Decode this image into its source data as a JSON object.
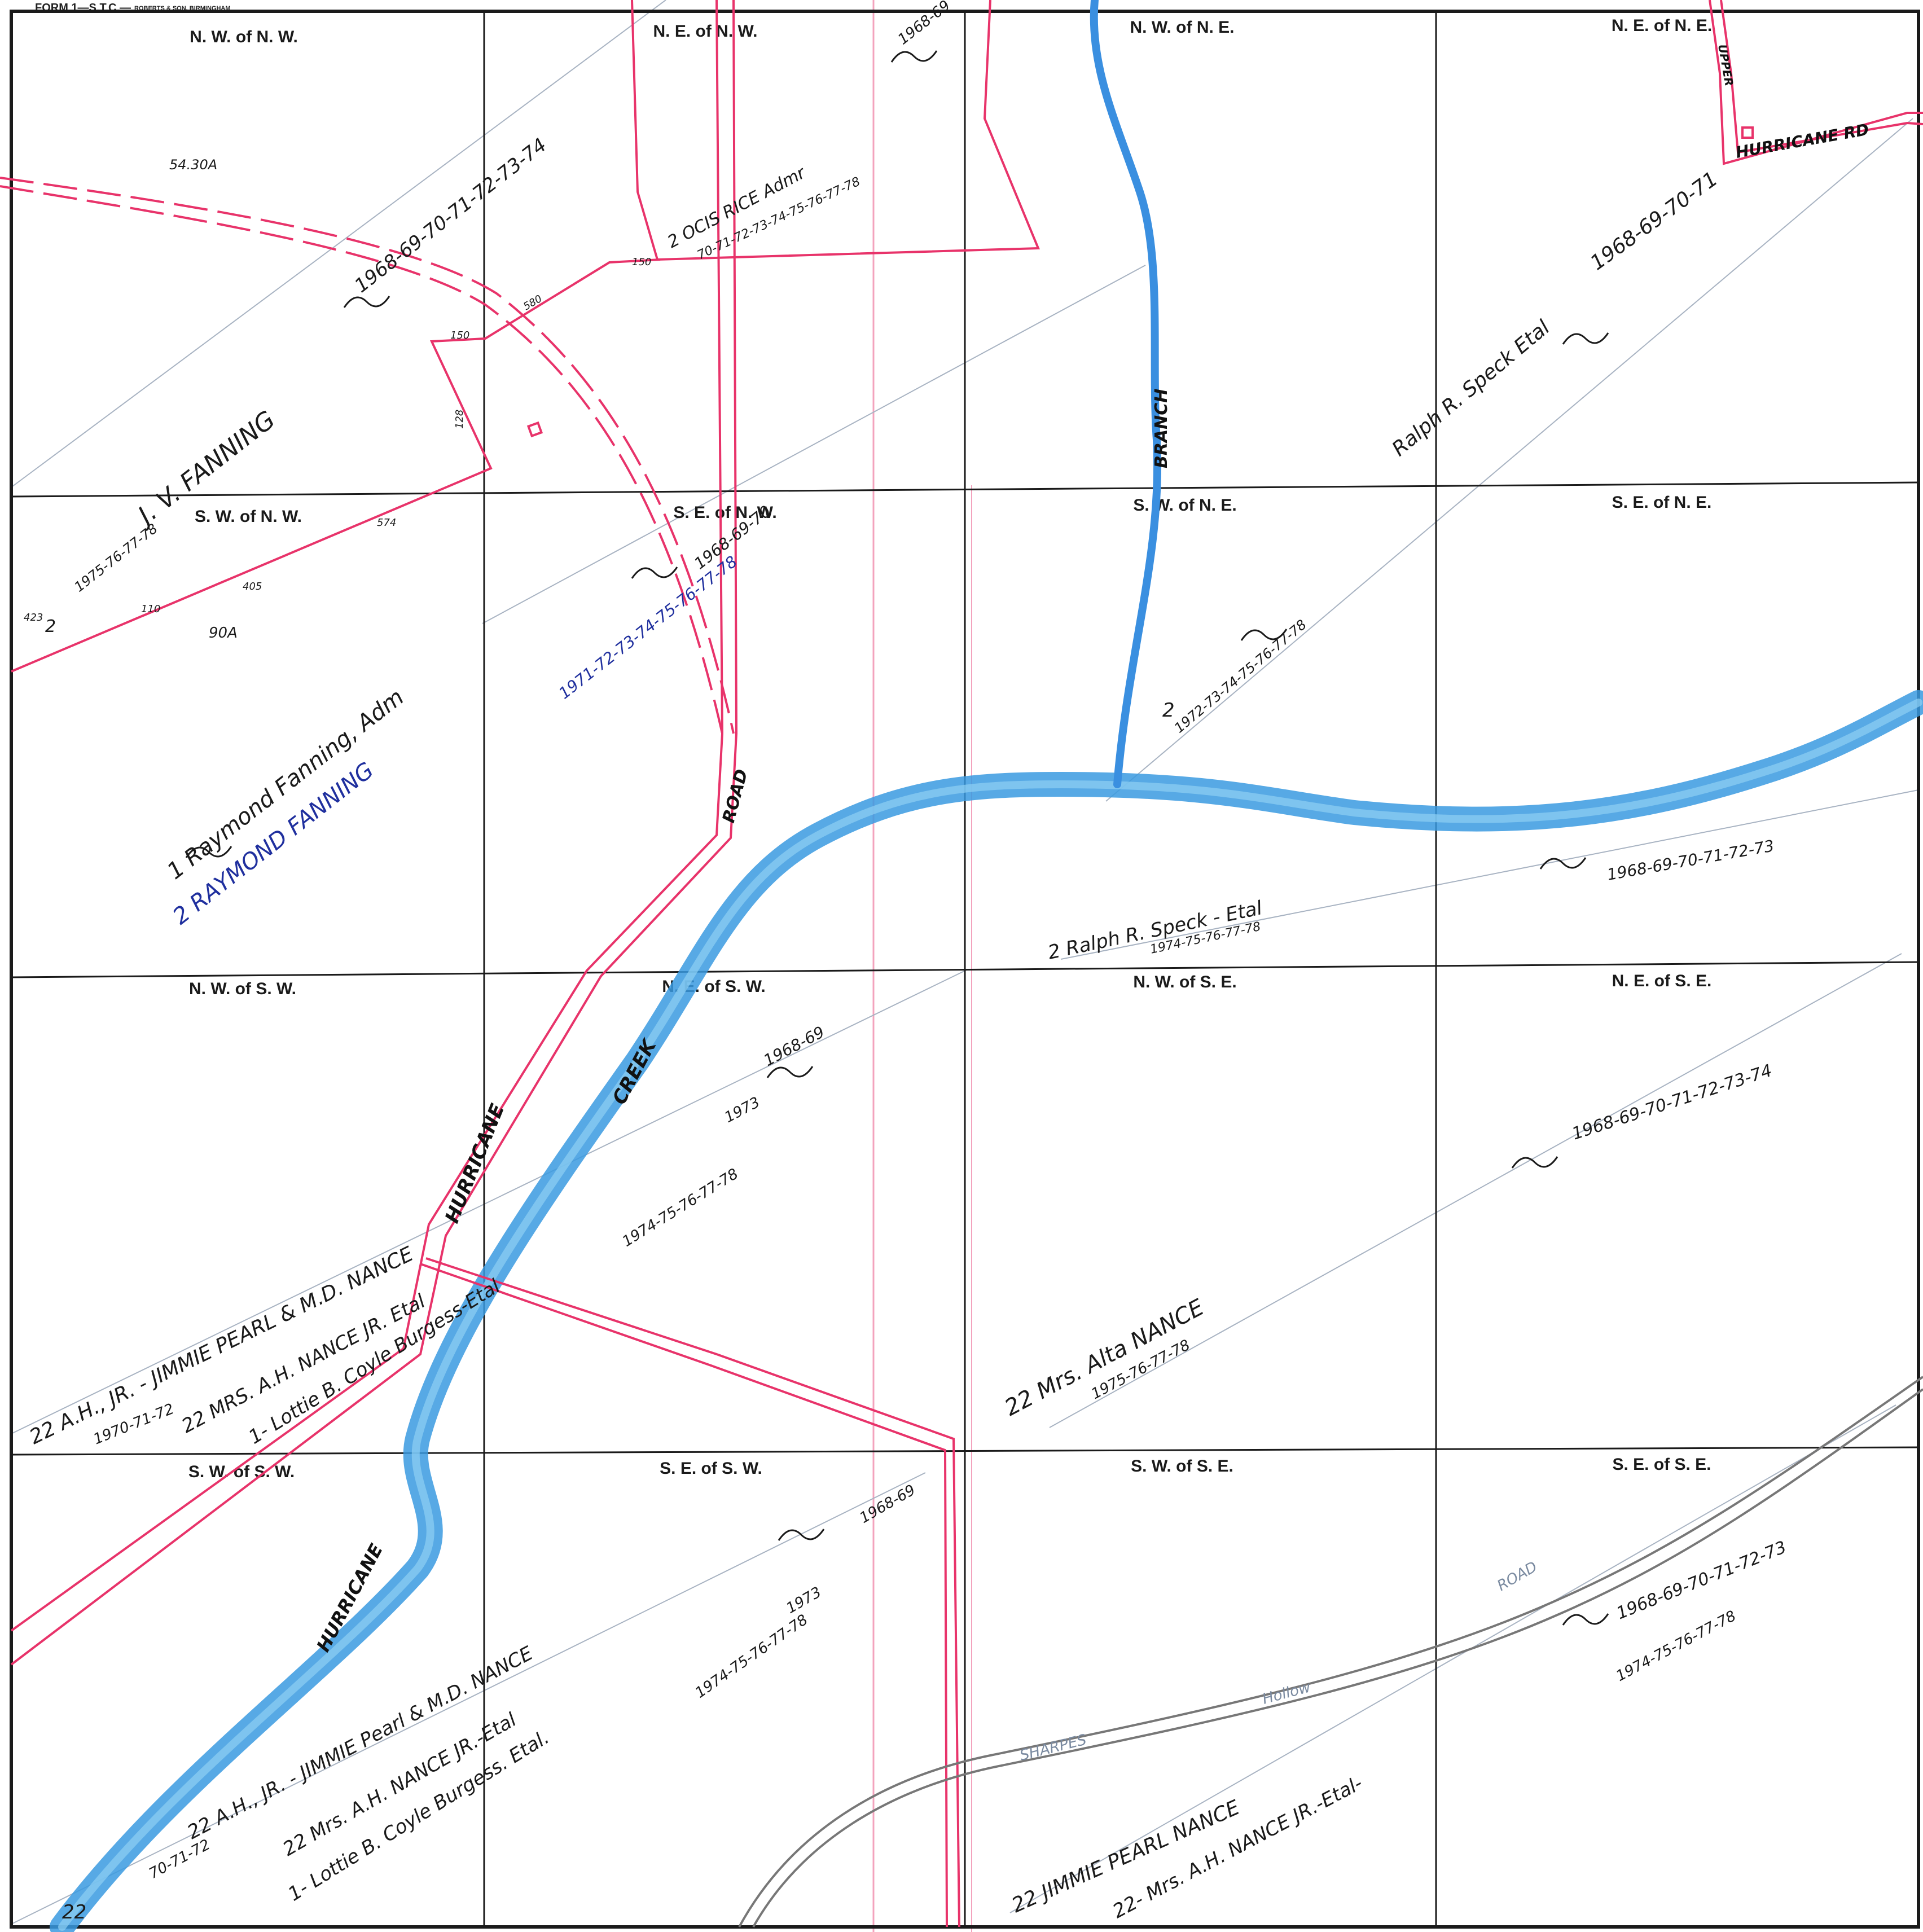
{
  "form_header": {
    "form": "FORM 1—S.T.C.—",
    "printer": "ROBERTS & SON, BIRMINGHAM"
  },
  "cells": {
    "nw_nw": "N. W. of N. W.",
    "ne_nw": "N. E. of N. W.",
    "nw_ne": "N. W. of N. E.",
    "ne_ne": "N. E. of N. E.",
    "sw_nw": "S. W. of N. W.",
    "se_nw": "S. E. of N. W.",
    "sw_ne": "S. W. of N. E.",
    "se_ne": "S. E. of N. E.",
    "nw_sw": "N. W. of S. W.",
    "ne_sw": "N. E. of S. W.",
    "nw_se": "N. W. of S. E.",
    "ne_se": "N. E. of S. E.",
    "sw_sw": "S. W. of S. W.",
    "se_sw": "S. E. of S. W.",
    "sw_se": "S. W. of S. E.",
    "se_se": "S. E. of S. E."
  },
  "features": {
    "branch": "BRANCH",
    "creek": "CREEK",
    "hurricane_1": "HURRICANE",
    "hurricane_2": "HURRICANE",
    "hurricane_road": "HURRICANE RD",
    "road_1": "ROAD",
    "road_2": "ROAD",
    "upper": "UPPER",
    "sharpes": "SHARPES",
    "hollow": "Hollow"
  },
  "parcel_marks": {
    "acres_1": "54.30A",
    "acres_2": "90A",
    "m150a": "150",
    "m580": "580",
    "m150b": "150",
    "m128": "128",
    "m574": "574",
    "m405": "405",
    "m423": "423",
    "m110": "110"
  },
  "entries": {
    "fanning_jv_years": "1968-69-70-71-72-73-74",
    "fanning_jv": "J. V. FANNING",
    "fanning_jv_years2": "1975-76-77-78",
    "fanning_jv_code": "2",
    "rice_years": "1968-69",
    "rice": "2 OCIS RICE Admr",
    "rice_years2": "70-71-72-73-74-75-76-77-78",
    "speck_years": "1968-69-70-71",
    "speck": "Ralph R. Speck Etal",
    "raymond_adm": "1 Raymond Fanning, Adm",
    "raymond_adm_years": "1968-69-70",
    "raymond_blue": "2 RAYMOND FANNING",
    "raymond_blue_years": "1971-72-73-74-75-76-77-78",
    "speck2_code": "2",
    "speck2_years": "1972-73-74-75-76-77-78",
    "speck3": "2 Ralph R. Speck - Etal",
    "speck3_years": "1968-69-70-71-72-73",
    "speck3_years2": "1974-75-76-77-78",
    "nance_ah_jr": "22 A.H., JR. - JIMMIE PEARL & M.D. NANCE",
    "nance_ah_jr_years": "1968-69",
    "nance_ah_jr_years2": "1970-71-72",
    "nance_mrs_ah": "22 MRS. A.H. NANCE JR. Etal",
    "nance_mrs_ah_years": "1973",
    "burgess": "1- Lottie B. Coyle Burgess-Etal",
    "burgess_years": "1974-75-76-77-78",
    "alta_nance": "22 Mrs. Alta NANCE",
    "alta_nance_years": "1968-69-70-71-72-73-74",
    "alta_nance_years2": "1975-76-77-78",
    "sw_nance_ah_jr": "22 A.H., JR. - JIMMIE Pearl & M.D. NANCE",
    "sw_nance_ah_jr_years": "1968-69",
    "sw_nance_ah_jr_years2": "70-71-72",
    "sw_nance_mrs_ah": "22 Mrs. A.H. NANCE JR.-Etal",
    "sw_nance_mrs_ah_years": "1973",
    "sw_burgess": "1- Lottie B. Coyle Burgess. Etal.",
    "sw_burgess_years": "1974-75-76-77-78",
    "se_jimmie_nance": "22 JIMMIE PEARL NANCE",
    "se_jimmie_nance_years": "1968-69-70-71-72-73",
    "se_mrs_ah_nance": "22- Mrs. A.H. NANCE JR.-Etal-",
    "se_mrs_ah_nance_years": "1974-75-76-77-78",
    "sw_corner_code": "22"
  },
  "colors": {
    "grid": "#1a1a1a",
    "property_lines": "#e8336a",
    "water": "#3a9ae0",
    "road_gray": "#777777",
    "pencil": "#9aa6b4"
  }
}
